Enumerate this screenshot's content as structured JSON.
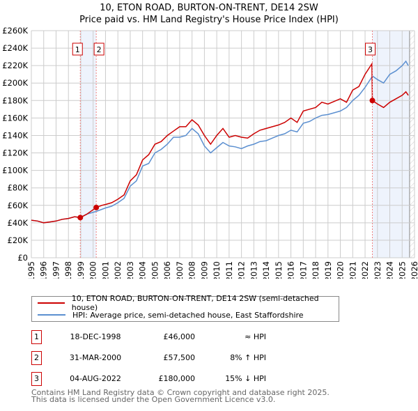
{
  "title_line1": "10, ETON ROAD, BURTON-ON-TRENT, DE14 2SW",
  "title_line2": "Price paid vs. HM Land Registry's House Price Index (HPI)",
  "chart_data": {
    "type": "line",
    "xlim": [
      1995,
      2026
    ],
    "ylim": [
      0,
      260000
    ],
    "x_ticks": [
      "1995",
      "1996",
      "1997",
      "1998",
      "1999",
      "2000",
      "2001",
      "2002",
      "2003",
      "2004",
      "2005",
      "2006",
      "2007",
      "2008",
      "2009",
      "2010",
      "2011",
      "2012",
      "2013",
      "2014",
      "2015",
      "2016",
      "2017",
      "2018",
      "2019",
      "2020",
      "2021",
      "2022",
      "2023",
      "2024",
      "2025",
      "2026"
    ],
    "y_ticks": [
      {
        "v": 0,
        "label": "£0"
      },
      {
        "v": 20000,
        "label": "£20K"
      },
      {
        "v": 40000,
        "label": "£40K"
      },
      {
        "v": 60000,
        "label": "£60K"
      },
      {
        "v": 80000,
        "label": "£80K"
      },
      {
        "v": 100000,
        "label": "£100K"
      },
      {
        "v": 120000,
        "label": "£120K"
      },
      {
        "v": 140000,
        "label": "£140K"
      },
      {
        "v": 160000,
        "label": "£160K"
      },
      {
        "v": 180000,
        "label": "£180K"
      },
      {
        "v": 200000,
        "label": "£200K"
      },
      {
        "v": 220000,
        "label": "£220K"
      },
      {
        "v": 240000,
        "label": "£240K"
      },
      {
        "v": 260000,
        "label": "£260K"
      }
    ],
    "grid": true,
    "series": [
      {
        "name": "10, ETON ROAD, BURTON-ON-TRENT, DE14 2SW (semi-detached house)",
        "color": "#cc0000",
        "points": [
          [
            1995,
            43000
          ],
          [
            1995.5,
            42000
          ],
          [
            1996,
            40000
          ],
          [
            1996.5,
            41000
          ],
          [
            1997,
            42000
          ],
          [
            1997.5,
            44000
          ],
          [
            1998,
            45000
          ],
          [
            1998.5,
            47000
          ],
          [
            1998.96,
            46000
          ],
          [
            1999.5,
            50000
          ],
          [
            2000.25,
            57500
          ],
          [
            2000.7,
            60000
          ],
          [
            2001,
            61000
          ],
          [
            2001.5,
            63000
          ],
          [
            2002,
            67000
          ],
          [
            2002.5,
            72000
          ],
          [
            2003,
            88000
          ],
          [
            2003.5,
            95000
          ],
          [
            2004,
            112000
          ],
          [
            2004.5,
            118000
          ],
          [
            2005,
            130000
          ],
          [
            2005.5,
            133000
          ],
          [
            2006,
            140000
          ],
          [
            2006.5,
            145000
          ],
          [
            2007,
            150000
          ],
          [
            2007.5,
            150000
          ],
          [
            2008,
            158000
          ],
          [
            2008.5,
            152000
          ],
          [
            2009,
            140000
          ],
          [
            2009.5,
            130000
          ],
          [
            2010,
            140000
          ],
          [
            2010.5,
            148000
          ],
          [
            2011,
            138000
          ],
          [
            2011.5,
            140000
          ],
          [
            2012,
            138000
          ],
          [
            2012.5,
            137000
          ],
          [
            2013,
            142000
          ],
          [
            2013.5,
            146000
          ],
          [
            2014,
            148000
          ],
          [
            2014.5,
            150000
          ],
          [
            2015,
            152000
          ],
          [
            2015.5,
            155000
          ],
          [
            2016,
            160000
          ],
          [
            2016.5,
            155000
          ],
          [
            2017,
            168000
          ],
          [
            2017.5,
            170000
          ],
          [
            2018,
            172000
          ],
          [
            2018.5,
            178000
          ],
          [
            2019,
            176000
          ],
          [
            2019.5,
            179000
          ],
          [
            2020,
            182000
          ],
          [
            2020.5,
            178000
          ],
          [
            2021,
            192000
          ],
          [
            2021.5,
            196000
          ],
          [
            2022,
            210000
          ],
          [
            2022.55,
            222000
          ],
          [
            2022.59,
            180000
          ],
          [
            2023,
            176000
          ],
          [
            2023.5,
            172000
          ],
          [
            2024,
            178000
          ],
          [
            2024.5,
            182000
          ],
          [
            2025,
            186000
          ],
          [
            2025.3,
            190000
          ],
          [
            2025.5,
            186000
          ]
        ]
      },
      {
        "name": "HPI: Average price, semi-detached house, East Staffordshire",
        "color": "#5b8fd0",
        "points": [
          [
            1995,
            43000
          ],
          [
            1995.5,
            42000
          ],
          [
            1996,
            40000
          ],
          [
            1996.5,
            41000
          ],
          [
            1997,
            42000
          ],
          [
            1997.5,
            44000
          ],
          [
            1998,
            45000
          ],
          [
            1998.5,
            47000
          ],
          [
            1998.96,
            46000
          ],
          [
            1999.5,
            50000
          ],
          [
            2000.25,
            53000
          ],
          [
            2001,
            57000
          ],
          [
            2001.5,
            59000
          ],
          [
            2002,
            63000
          ],
          [
            2002.5,
            68000
          ],
          [
            2003,
            82000
          ],
          [
            2003.5,
            88000
          ],
          [
            2004,
            105000
          ],
          [
            2004.5,
            108000
          ],
          [
            2005,
            120000
          ],
          [
            2005.5,
            124000
          ],
          [
            2006,
            130000
          ],
          [
            2006.5,
            138000
          ],
          [
            2007,
            138000
          ],
          [
            2007.5,
            140000
          ],
          [
            2008,
            148000
          ],
          [
            2008.5,
            142000
          ],
          [
            2009,
            128000
          ],
          [
            2009.5,
            120000
          ],
          [
            2010,
            126000
          ],
          [
            2010.5,
            132000
          ],
          [
            2011,
            128000
          ],
          [
            2011.5,
            127000
          ],
          [
            2012,
            125000
          ],
          [
            2012.5,
            128000
          ],
          [
            2013,
            130000
          ],
          [
            2013.5,
            133000
          ],
          [
            2014,
            134000
          ],
          [
            2014.5,
            137000
          ],
          [
            2015,
            140000
          ],
          [
            2015.5,
            142000
          ],
          [
            2016,
            146000
          ],
          [
            2016.5,
            144000
          ],
          [
            2017,
            154000
          ],
          [
            2017.5,
            156000
          ],
          [
            2018,
            160000
          ],
          [
            2018.5,
            163000
          ],
          [
            2019,
            164000
          ],
          [
            2019.5,
            166000
          ],
          [
            2020,
            168000
          ],
          [
            2020.5,
            172000
          ],
          [
            2021,
            180000
          ],
          [
            2021.5,
            186000
          ],
          [
            2022,
            195000
          ],
          [
            2022.6,
            208000
          ],
          [
            2023,
            204000
          ],
          [
            2023.5,
            200000
          ],
          [
            2024,
            210000
          ],
          [
            2024.5,
            214000
          ],
          [
            2025,
            220000
          ],
          [
            2025.3,
            225000
          ],
          [
            2025.5,
            220000
          ]
        ]
      }
    ],
    "sales": [
      {
        "id": "1",
        "x": 1998.96,
        "price": 46000
      },
      {
        "id": "2",
        "x": 2000.25,
        "price": 57500
      },
      {
        "id": "3",
        "x": 2022.59,
        "price": 180000
      }
    ],
    "shaded_ranges": [
      [
        1998.96,
        2000.25
      ],
      [
        2022.59,
        2025.6
      ]
    ],
    "forecast_hatch_from": 2025.6
  },
  "legend": [
    {
      "label": "10, ETON ROAD, BURTON-ON-TRENT, DE14 2SW (semi-detached house)",
      "color": "#cc0000"
    },
    {
      "label": "HPI: Average price, semi-detached house, East Staffordshire",
      "color": "#5b8fd0"
    }
  ],
  "transactions": [
    {
      "id": "1",
      "date": "18-DEC-1998",
      "price": "£46,000",
      "hpi": "≈ HPI"
    },
    {
      "id": "2",
      "date": "31-MAR-2000",
      "price": "£57,500",
      "hpi": "8% ↑ HPI"
    },
    {
      "id": "3",
      "date": "04-AUG-2022",
      "price": "£180,000",
      "hpi": "15% ↓ HPI"
    }
  ],
  "footer_line1": "Contains HM Land Registry data © Crown copyright and database right 2025.",
  "footer_line2": "This data is licensed under the Open Government Licence v3.0."
}
